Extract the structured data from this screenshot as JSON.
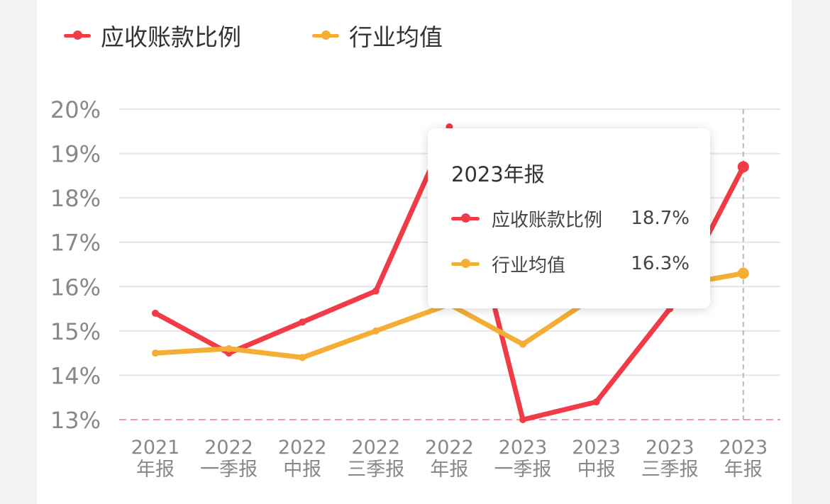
{
  "colors": {
    "series1": "#f13b46",
    "series2": "#f4ae35",
    "grid": "#e4e4ec",
    "axis_text": "#888888",
    "baseline": "#f29ba1"
  },
  "legend": [
    {
      "label": "应收账款比例",
      "color": "#f13b46"
    },
    {
      "label": "行业均值",
      "color": "#f4ae35"
    }
  ],
  "chart_data": {
    "type": "line",
    "x": [
      "2021\n年报",
      "2022\n一季报",
      "2022\n中报",
      "2022\n三季报",
      "2022\n年报",
      "2023\n一季报",
      "2023\n中报",
      "2023\n三季报",
      "2023\n年报"
    ],
    "series": [
      {
        "name": "应收账款比例",
        "color": "#f13b46",
        "values": [
          15.4,
          14.5,
          15.2,
          15.9,
          19.6,
          13.0,
          13.4,
          15.5,
          18.7
        ]
      },
      {
        "name": "行业均值",
        "color": "#f4ae35",
        "values": [
          14.5,
          14.6,
          14.4,
          15.0,
          15.6,
          14.7,
          15.8,
          16.0,
          16.3
        ]
      }
    ],
    "yticks": [
      "13%",
      "14%",
      "15%",
      "16%",
      "17%",
      "18%",
      "19%",
      "20%"
    ],
    "ylim": [
      13,
      20
    ],
    "grid": true,
    "legend_position": "top-left",
    "crosshair_category": "2023\n年报"
  },
  "tooltip": {
    "title": "2023年报",
    "rows": [
      {
        "name": "应收账款比例",
        "value": "18.7%",
        "color": "#f13b46"
      },
      {
        "name": "行业均值",
        "value": "16.3%",
        "color": "#f4ae35"
      }
    ]
  }
}
